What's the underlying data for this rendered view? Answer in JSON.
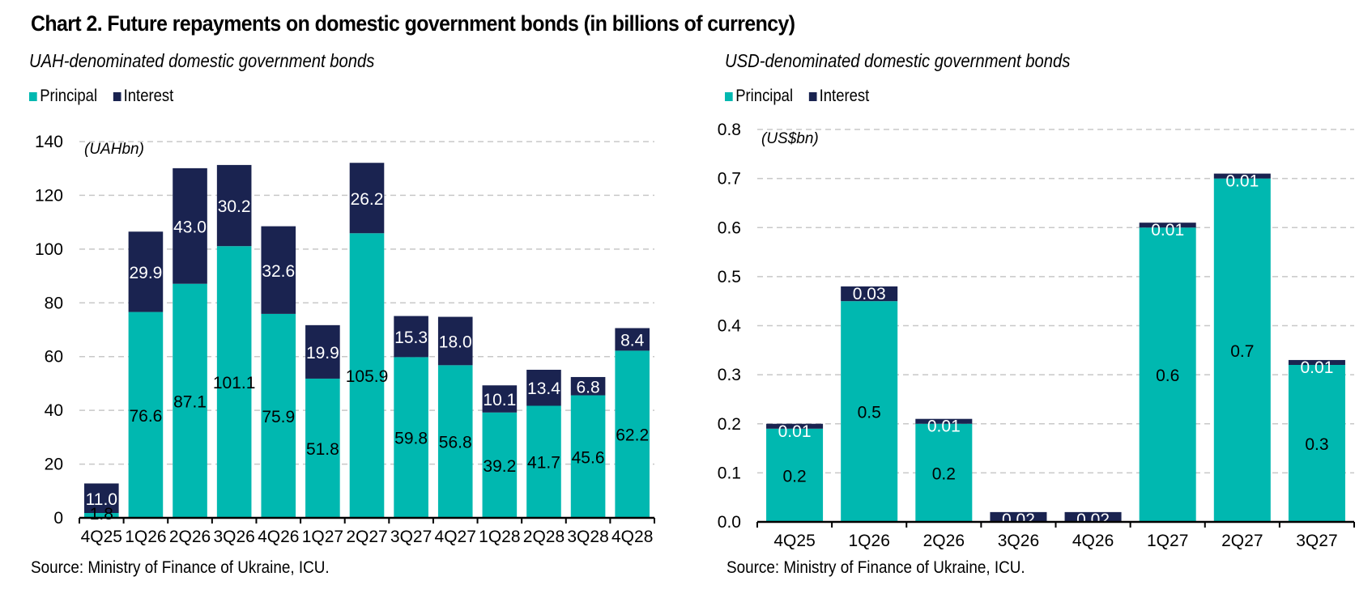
{
  "title": "Chart 2. Future repayments on domestic government bonds (in billions of currency)",
  "colors": {
    "principal": "#00B8B0",
    "interest": "#1A2350",
    "grid": "#C8C8C8",
    "axis": "#000000"
  },
  "chart_data": [
    {
      "type": "bar",
      "stacked": true,
      "title": "UAH-denominated domestic government bonds",
      "unit_label": "(UAHbn)",
      "xlabel": "",
      "ylabel": "",
      "ylim": [
        0,
        140
      ],
      "yticks": [
        0,
        20,
        40,
        60,
        80,
        100,
        120,
        140
      ],
      "ytick_labels": [
        "0",
        "20",
        "40",
        "60",
        "80",
        "100",
        "120",
        "140"
      ],
      "grid": true,
      "legend": {
        "placement": "top-left",
        "entries": [
          "Principal",
          "Interest"
        ]
      },
      "categories": [
        "4Q25",
        "1Q26",
        "2Q26",
        "3Q26",
        "4Q26",
        "1Q27",
        "2Q27",
        "3Q27",
        "4Q27",
        "1Q28",
        "2Q28",
        "3Q28",
        "4Q28"
      ],
      "series": [
        {
          "name": "Principal",
          "values": [
            1.8,
            76.6,
            87.1,
            101.1,
            75.9,
            51.8,
            105.9,
            59.8,
            56.8,
            39.2,
            41.7,
            45.6,
            62.2
          ],
          "labels": [
            "1.8",
            "76.6",
            "87.1",
            "101.1",
            "75.9",
            "51.8",
            "105.9",
            "59.8",
            "56.8",
            "39.2",
            "41.7",
            "45.6",
            "62.2"
          ]
        },
        {
          "name": "Interest",
          "values": [
            11.0,
            29.9,
            43.0,
            30.2,
            32.6,
            19.9,
            26.2,
            15.3,
            18.0,
            10.1,
            13.4,
            6.8,
            8.4
          ],
          "labels": [
            "11.0",
            "29.9",
            "43.0",
            "30.2",
            "32.6",
            "19.9",
            "26.2",
            "15.3",
            "18.0",
            "10.1",
            "13.4",
            "6.8",
            "8.4"
          ]
        }
      ],
      "source": "Source: Ministry of Finance of Ukraine, ICU."
    },
    {
      "type": "bar",
      "stacked": true,
      "title": "USD-denominated domestic government bonds",
      "unit_label": "(US$bn)",
      "xlabel": "",
      "ylabel": "",
      "ylim": [
        0,
        0.8
      ],
      "yticks": [
        0,
        0.1,
        0.2,
        0.3,
        0.4,
        0.5,
        0.6,
        0.7,
        0.8
      ],
      "ytick_labels": [
        "0.0",
        "0.1",
        "0.2",
        "0.3",
        "0.4",
        "0.5",
        "0.6",
        "0.7",
        "0.8"
      ],
      "grid": true,
      "legend": {
        "placement": "top-left",
        "entries": [
          "Principal",
          "Interest"
        ]
      },
      "categories": [
        "4Q25",
        "1Q26",
        "2Q26",
        "3Q26",
        "4Q26",
        "1Q27",
        "2Q27",
        "3Q27"
      ],
      "series": [
        {
          "name": "Principal",
          "values": [
            0.19,
            0.45,
            0.2,
            0.0,
            0.0,
            0.6,
            0.7,
            0.32
          ],
          "labels": [
            "0.2",
            "0.5",
            "0.2",
            "",
            "",
            "0.6",
            "0.7",
            "0.3"
          ]
        },
        {
          "name": "Interest",
          "values": [
            0.01,
            0.03,
            0.01,
            0.02,
            0.02,
            0.01,
            0.01,
            0.01
          ],
          "labels": [
            "0.01",
            "0.03",
            "0.01",
            "0.02",
            "0.02",
            "0.01",
            "0.01",
            "0.01"
          ]
        }
      ],
      "source": "Source: Ministry of Finance of Ukraine, ICU."
    }
  ]
}
